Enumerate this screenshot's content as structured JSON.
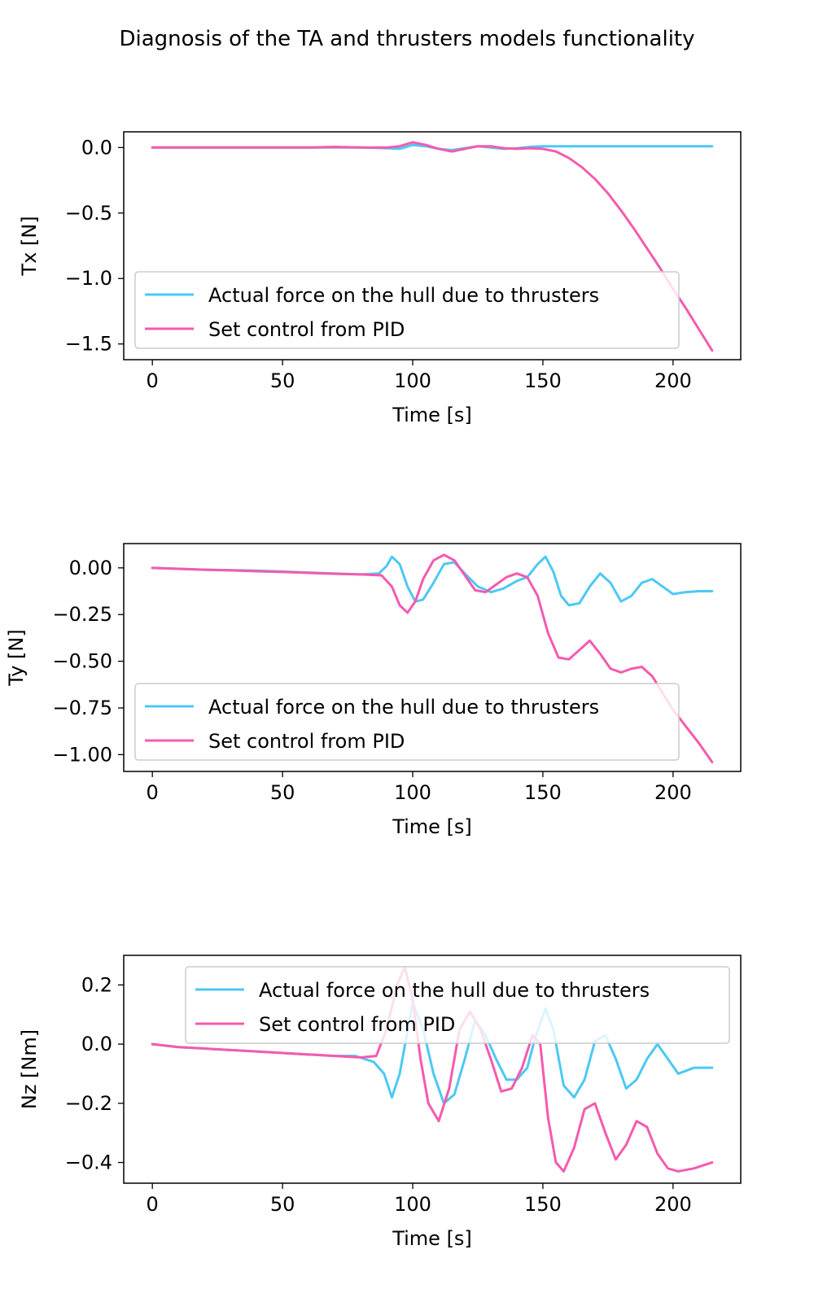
{
  "figure": {
    "title": "Diagnosis of the TA and thrusters models functionality"
  },
  "colors": {
    "actual": "#4dc8f5",
    "setpoint": "#f55aae",
    "axes": "#000000",
    "legend_border": "#cccccc"
  },
  "chart_data": [
    {
      "type": "line",
      "title": "",
      "xlabel": "Time [s]",
      "ylabel": "Tx [N]",
      "xlim": [
        -11,
        226
      ],
      "ylim": [
        -1.62,
        0.12
      ],
      "xticks": [
        0,
        50,
        100,
        150,
        200
      ],
      "yticks": [
        0.0,
        -0.5,
        -1.0,
        -1.5
      ],
      "ytick_labels": [
        "0.0",
        "−0.5",
        "−1.0",
        "−1.5"
      ],
      "grid": false,
      "legend_position": "lower-left",
      "series": [
        {
          "name": "Actual force on the hull due to thrusters",
          "x": [
            0,
            20,
            40,
            60,
            80,
            90,
            95,
            100,
            105,
            110,
            115,
            120,
            125,
            130,
            135,
            140,
            145,
            150,
            160,
            180,
            200,
            215
          ],
          "y": [
            0.0,
            0.0,
            0.0,
            0.0,
            0.0,
            -0.005,
            -0.01,
            0.02,
            0.01,
            -0.01,
            -0.02,
            -0.005,
            0.01,
            0.0,
            -0.01,
            -0.005,
            0.005,
            0.01,
            0.01,
            0.01,
            0.01,
            0.01
          ]
        },
        {
          "name": "Set control from PID",
          "x": [
            0,
            20,
            40,
            60,
            70,
            80,
            90,
            95,
            100,
            105,
            110,
            115,
            120,
            125,
            130,
            135,
            140,
            145,
            150,
            155,
            160,
            165,
            170,
            175,
            180,
            185,
            190,
            195,
            200,
            205,
            210,
            215
          ],
          "y": [
            0.0,
            0.0,
            0.0,
            0.0,
            0.005,
            0.0,
            0.0,
            0.01,
            0.04,
            0.02,
            -0.01,
            -0.03,
            -0.01,
            0.01,
            0.01,
            -0.005,
            -0.01,
            -0.005,
            -0.01,
            -0.03,
            -0.08,
            -0.15,
            -0.24,
            -0.35,
            -0.48,
            -0.62,
            -0.77,
            -0.92,
            -1.08,
            -1.23,
            -1.39,
            -1.55
          ]
        }
      ]
    },
    {
      "type": "line",
      "title": "",
      "xlabel": "Time [s]",
      "ylabel": "Ty [N]",
      "xlim": [
        -11,
        226
      ],
      "ylim": [
        -1.09,
        0.13
      ],
      "xticks": [
        0,
        50,
        100,
        150,
        200
      ],
      "yticks": [
        0.0,
        -0.25,
        -0.5,
        -0.75,
        -1.0
      ],
      "ytick_labels": [
        "0.00",
        "−0.25",
        "−0.50",
        "−0.75",
        "−1.00"
      ],
      "grid": false,
      "legend_position": "lower-left",
      "series": [
        {
          "name": "Actual force on the hull due to thrusters",
          "x": [
            0,
            10,
            20,
            30,
            40,
            50,
            60,
            70,
            80,
            87,
            90,
            92,
            95,
            98,
            101,
            104,
            108,
            112,
            116,
            120,
            125,
            130,
            135,
            140,
            144,
            148,
            151,
            154,
            157,
            160,
            164,
            168,
            172,
            176,
            180,
            184,
            188,
            192,
            196,
            200,
            205,
            210,
            215
          ],
          "y": [
            0.0,
            -0.005,
            -0.01,
            -0.012,
            -0.015,
            -0.02,
            -0.025,
            -0.03,
            -0.035,
            -0.03,
            0.01,
            0.06,
            0.02,
            -0.1,
            -0.18,
            -0.17,
            -0.08,
            0.02,
            0.03,
            -0.03,
            -0.1,
            -0.13,
            -0.11,
            -0.07,
            -0.05,
            0.02,
            0.06,
            -0.02,
            -0.15,
            -0.2,
            -0.19,
            -0.1,
            -0.03,
            -0.08,
            -0.18,
            -0.15,
            -0.08,
            -0.06,
            -0.1,
            -0.14,
            -0.13,
            -0.125,
            -0.125
          ]
        },
        {
          "name": "Set control from PID",
          "x": [
            0,
            10,
            20,
            30,
            40,
            50,
            60,
            70,
            80,
            88,
            92,
            95,
            98,
            101,
            104,
            108,
            112,
            116,
            120,
            124,
            128,
            132,
            136,
            140,
            144,
            148,
            152,
            156,
            160,
            164,
            168,
            172,
            176,
            180,
            184,
            188,
            192,
            196,
            200,
            205,
            210,
            215
          ],
          "y": [
            0.0,
            -0.005,
            -0.01,
            -0.013,
            -0.018,
            -0.022,
            -0.027,
            -0.032,
            -0.035,
            -0.04,
            -0.1,
            -0.2,
            -0.24,
            -0.18,
            -0.06,
            0.04,
            0.07,
            0.04,
            -0.04,
            -0.12,
            -0.13,
            -0.09,
            -0.05,
            -0.03,
            -0.05,
            -0.15,
            -0.35,
            -0.48,
            -0.49,
            -0.44,
            -0.39,
            -0.46,
            -0.54,
            -0.56,
            -0.54,
            -0.53,
            -0.58,
            -0.67,
            -0.76,
            -0.85,
            -0.94,
            -1.04
          ]
        }
      ]
    },
    {
      "type": "line",
      "title": "",
      "xlabel": "Time [s]",
      "ylabel": "Nz [Nm]",
      "xlim": [
        -11,
        226
      ],
      "ylim": [
        -0.47,
        0.3
      ],
      "xticks": [
        0,
        50,
        100,
        150,
        200
      ],
      "yticks": [
        0.2,
        0.0,
        -0.2,
        -0.4
      ],
      "ytick_labels": [
        "0.2",
        "0.0",
        "−0.2",
        "−0.4"
      ],
      "grid": false,
      "legend_position": "upper-right",
      "series": [
        {
          "name": "Actual force on the hull due to thrusters",
          "x": [
            0,
            10,
            20,
            30,
            40,
            50,
            60,
            70,
            78,
            85,
            89,
            92,
            95,
            100,
            104,
            108,
            112,
            116,
            120,
            124,
            128,
            132,
            136,
            140,
            144,
            147,
            151,
            154,
            158,
            162,
            166,
            170,
            174,
            178,
            182,
            186,
            190,
            194,
            198,
            202,
            208,
            215
          ],
          "y": [
            0.0,
            -0.01,
            -0.015,
            -0.02,
            -0.025,
            -0.03,
            -0.035,
            -0.04,
            -0.04,
            -0.06,
            -0.1,
            -0.18,
            -0.1,
            0.14,
            0.05,
            -0.1,
            -0.2,
            -0.17,
            -0.05,
            0.08,
            0.03,
            -0.05,
            -0.12,
            -0.12,
            -0.08,
            0.02,
            0.12,
            0.05,
            -0.14,
            -0.18,
            -0.12,
            0.01,
            0.03,
            -0.05,
            -0.15,
            -0.12,
            -0.05,
            0.0,
            -0.05,
            -0.1,
            -0.08,
            -0.08
          ]
        },
        {
          "name": "Set control from PID",
          "x": [
            0,
            10,
            20,
            30,
            40,
            50,
            60,
            70,
            80,
            86,
            90,
            94,
            97,
            100,
            103,
            106,
            110,
            114,
            118,
            122,
            126,
            130,
            134,
            138,
            142,
            146,
            149,
            152,
            155,
            158,
            162,
            166,
            170,
            174,
            178,
            182,
            186,
            190,
            194,
            198,
            202,
            208,
            215
          ],
          "y": [
            0.0,
            -0.01,
            -0.015,
            -0.02,
            -0.025,
            -0.03,
            -0.035,
            -0.04,
            -0.045,
            -0.04,
            0.05,
            0.2,
            0.26,
            0.15,
            -0.05,
            -0.2,
            -0.26,
            -0.15,
            0.05,
            0.11,
            0.05,
            -0.05,
            -0.16,
            -0.15,
            -0.08,
            0.03,
            0.0,
            -0.25,
            -0.4,
            -0.43,
            -0.35,
            -0.22,
            -0.2,
            -0.3,
            -0.39,
            -0.34,
            -0.26,
            -0.28,
            -0.37,
            -0.42,
            -0.43,
            -0.42,
            -0.4
          ]
        }
      ]
    }
  ]
}
